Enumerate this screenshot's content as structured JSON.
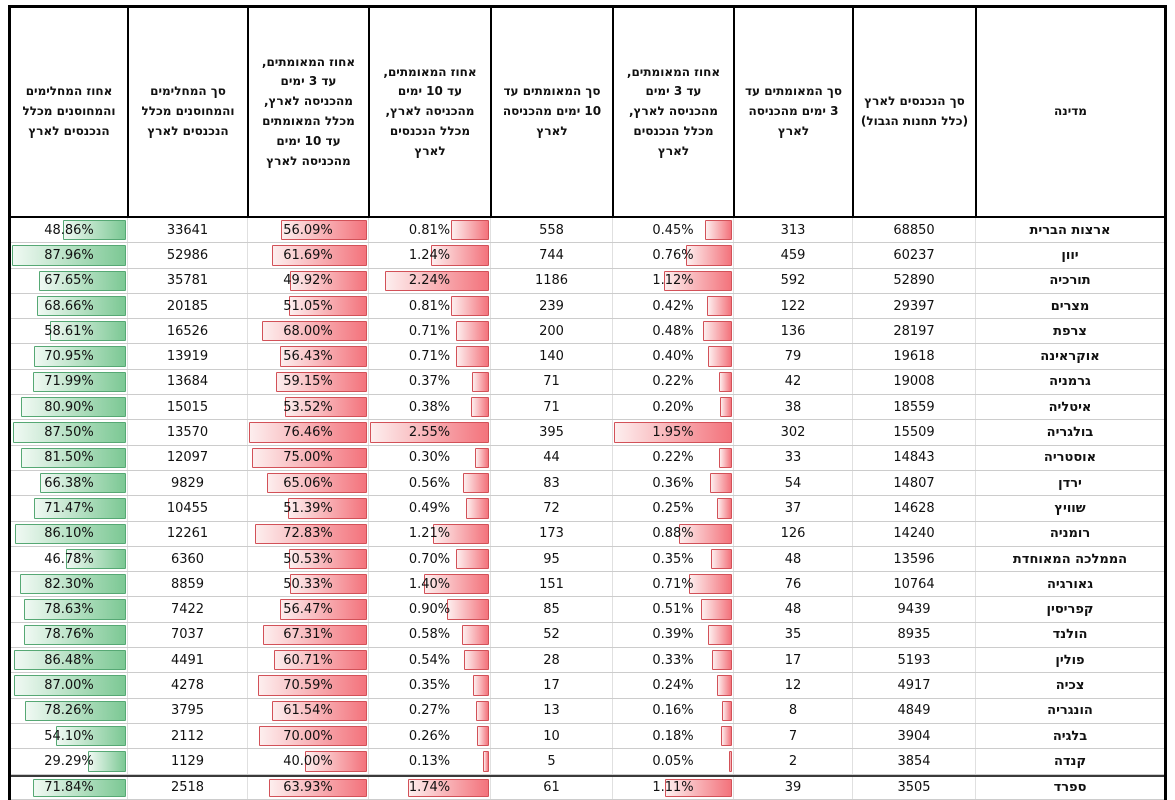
{
  "chart_data": {
    "type": "table",
    "direction": "rtl",
    "legend_position": "none",
    "grid": true,
    "columns": [
      {
        "key": "country",
        "label": "מדינה",
        "type": "text"
      },
      {
        "key": "total_entries",
        "label": "סך הנכנסים לארץ (כלל תחנות הגבול)",
        "type": "number"
      },
      {
        "key": "confirmed_3d_count",
        "label": "סך המאומתים עד 3 ימים מהכניסה לארץ",
        "type": "number"
      },
      {
        "key": "confirmed_3d_pct",
        "label": "אחוז המאומתים, עד 3 ימים מהכניסה לארץ, מכלל הנכנסים לארץ",
        "type": "percent",
        "bar": "red"
      },
      {
        "key": "confirmed_10d_count",
        "label": "סך המאומתים עד 10 ימים מהכניסה לארץ",
        "type": "number"
      },
      {
        "key": "confirmed_10d_pct",
        "label": "אחוז המאומתים, עד 10 ימים מהכניסה לארץ, מכלל הנכנסים לארץ",
        "type": "percent",
        "bar": "red"
      },
      {
        "key": "confirmed_3d_of_10d_pct",
        "label": "אחוז המאומתים, עד 3 ימים מהכניסה לארץ, מכלל המאומתים עד 10 ימים מהכניסה לארץ",
        "type": "percent",
        "bar": "red"
      },
      {
        "key": "recovered_vaccinated_count",
        "label": "סך המחלימים והמחוסנים מכלל הנכנסים לארץ",
        "type": "number"
      },
      {
        "key": "recovered_vaccinated_pct",
        "label": "אחוז המחלימים והמחוסנים מכלל הנכנסים לארץ",
        "type": "percent",
        "bar": "green"
      }
    ],
    "rows": [
      {
        "country": "ארצות הברית",
        "total_entries": 68850,
        "confirmed_3d_count": 313,
        "confirmed_3d_pct": "0.45%",
        "confirmed_10d_count": 558,
        "confirmed_10d_pct": "0.81%",
        "confirmed_3d_of_10d_pct": "56.09%",
        "recovered_vaccinated_count": 33641,
        "recovered_vaccinated_pct": "48.86%"
      },
      {
        "country": "יוון",
        "total_entries": 60237,
        "confirmed_3d_count": 459,
        "confirmed_3d_pct": "0.76%",
        "confirmed_10d_count": 744,
        "confirmed_10d_pct": "1.24%",
        "confirmed_3d_of_10d_pct": "61.69%",
        "recovered_vaccinated_count": 52986,
        "recovered_vaccinated_pct": "87.96%"
      },
      {
        "country": "תורכיה",
        "total_entries": 52890,
        "confirmed_3d_count": 592,
        "confirmed_3d_pct": "1.12%",
        "confirmed_10d_count": 1186,
        "confirmed_10d_pct": "2.24%",
        "confirmed_3d_of_10d_pct": "49.92%",
        "recovered_vaccinated_count": 35781,
        "recovered_vaccinated_pct": "67.65%"
      },
      {
        "country": "מצרים",
        "total_entries": 29397,
        "confirmed_3d_count": 122,
        "confirmed_3d_pct": "0.42%",
        "confirmed_10d_count": 239,
        "confirmed_10d_pct": "0.81%",
        "confirmed_3d_of_10d_pct": "51.05%",
        "recovered_vaccinated_count": 20185,
        "recovered_vaccinated_pct": "68.66%"
      },
      {
        "country": "צרפת",
        "total_entries": 28197,
        "confirmed_3d_count": 136,
        "confirmed_3d_pct": "0.48%",
        "confirmed_10d_count": 200,
        "confirmed_10d_pct": "0.71%",
        "confirmed_3d_of_10d_pct": "68.00%",
        "recovered_vaccinated_count": 16526,
        "recovered_vaccinated_pct": "58.61%"
      },
      {
        "country": "אוקראינה",
        "total_entries": 19618,
        "confirmed_3d_count": 79,
        "confirmed_3d_pct": "0.40%",
        "confirmed_10d_count": 140,
        "confirmed_10d_pct": "0.71%",
        "confirmed_3d_of_10d_pct": "56.43%",
        "recovered_vaccinated_count": 13919,
        "recovered_vaccinated_pct": "70.95%"
      },
      {
        "country": "גרמניה",
        "total_entries": 19008,
        "confirmed_3d_count": 42,
        "confirmed_3d_pct": "0.22%",
        "confirmed_10d_count": 71,
        "confirmed_10d_pct": "0.37%",
        "confirmed_3d_of_10d_pct": "59.15%",
        "recovered_vaccinated_count": 13684,
        "recovered_vaccinated_pct": "71.99%"
      },
      {
        "country": "איטליה",
        "total_entries": 18559,
        "confirmed_3d_count": 38,
        "confirmed_3d_pct": "0.20%",
        "confirmed_10d_count": 71,
        "confirmed_10d_pct": "0.38%",
        "confirmed_3d_of_10d_pct": "53.52%",
        "recovered_vaccinated_count": 15015,
        "recovered_vaccinated_pct": "80.90%"
      },
      {
        "country": "בולגריה",
        "total_entries": 15509,
        "confirmed_3d_count": 302,
        "confirmed_3d_pct": "1.95%",
        "confirmed_10d_count": 395,
        "confirmed_10d_pct": "2.55%",
        "confirmed_3d_of_10d_pct": "76.46%",
        "recovered_vaccinated_count": 13570,
        "recovered_vaccinated_pct": "87.50%"
      },
      {
        "country": "אוסטריה",
        "total_entries": 14843,
        "confirmed_3d_count": 33,
        "confirmed_3d_pct": "0.22%",
        "confirmed_10d_count": 44,
        "confirmed_10d_pct": "0.30%",
        "confirmed_3d_of_10d_pct": "75.00%",
        "recovered_vaccinated_count": 12097,
        "recovered_vaccinated_pct": "81.50%"
      },
      {
        "country": "ירדן",
        "total_entries": 14807,
        "confirmed_3d_count": 54,
        "confirmed_3d_pct": "0.36%",
        "confirmed_10d_count": 83,
        "confirmed_10d_pct": "0.56%",
        "confirmed_3d_of_10d_pct": "65.06%",
        "recovered_vaccinated_count": 9829,
        "recovered_vaccinated_pct": "66.38%"
      },
      {
        "country": "שוויץ",
        "total_entries": 14628,
        "confirmed_3d_count": 37,
        "confirmed_3d_pct": "0.25%",
        "confirmed_10d_count": 72,
        "confirmed_10d_pct": "0.49%",
        "confirmed_3d_of_10d_pct": "51.39%",
        "recovered_vaccinated_count": 10455,
        "recovered_vaccinated_pct": "71.47%"
      },
      {
        "country": "רומניה",
        "total_entries": 14240,
        "confirmed_3d_count": 126,
        "confirmed_3d_pct": "0.88%",
        "confirmed_10d_count": 173,
        "confirmed_10d_pct": "1.21%",
        "confirmed_3d_of_10d_pct": "72.83%",
        "recovered_vaccinated_count": 12261,
        "recovered_vaccinated_pct": "86.10%"
      },
      {
        "country": "הממלכה המאוחדת",
        "total_entries": 13596,
        "confirmed_3d_count": 48,
        "confirmed_3d_pct": "0.35%",
        "confirmed_10d_count": 95,
        "confirmed_10d_pct": "0.70%",
        "confirmed_3d_of_10d_pct": "50.53%",
        "recovered_vaccinated_count": 6360,
        "recovered_vaccinated_pct": "46.78%"
      },
      {
        "country": "גאורגיה",
        "total_entries": 10764,
        "confirmed_3d_count": 76,
        "confirmed_3d_pct": "0.71%",
        "confirmed_10d_count": 151,
        "confirmed_10d_pct": "1.40%",
        "confirmed_3d_of_10d_pct": "50.33%",
        "recovered_vaccinated_count": 8859,
        "recovered_vaccinated_pct": "82.30%"
      },
      {
        "country": "קפריסין",
        "total_entries": 9439,
        "confirmed_3d_count": 48,
        "confirmed_3d_pct": "0.51%",
        "confirmed_10d_count": 85,
        "confirmed_10d_pct": "0.90%",
        "confirmed_3d_of_10d_pct": "56.47%",
        "recovered_vaccinated_count": 7422,
        "recovered_vaccinated_pct": "78.63%"
      },
      {
        "country": "הולנד",
        "total_entries": 8935,
        "confirmed_3d_count": 35,
        "confirmed_3d_pct": "0.39%",
        "confirmed_10d_count": 52,
        "confirmed_10d_pct": "0.58%",
        "confirmed_3d_of_10d_pct": "67.31%",
        "recovered_vaccinated_count": 7037,
        "recovered_vaccinated_pct": "78.76%"
      },
      {
        "country": "פולין",
        "total_entries": 5193,
        "confirmed_3d_count": 17,
        "confirmed_3d_pct": "0.33%",
        "confirmed_10d_count": 28,
        "confirmed_10d_pct": "0.54%",
        "confirmed_3d_of_10d_pct": "60.71%",
        "recovered_vaccinated_count": 4491,
        "recovered_vaccinated_pct": "86.48%"
      },
      {
        "country": "צכיה",
        "total_entries": 4917,
        "confirmed_3d_count": 12,
        "confirmed_3d_pct": "0.24%",
        "confirmed_10d_count": 17,
        "confirmed_10d_pct": "0.35%",
        "confirmed_3d_of_10d_pct": "70.59%",
        "recovered_vaccinated_count": 4278,
        "recovered_vaccinated_pct": "87.00%"
      },
      {
        "country": "הונגריה",
        "total_entries": 4849,
        "confirmed_3d_count": 8,
        "confirmed_3d_pct": "0.16%",
        "confirmed_10d_count": 13,
        "confirmed_10d_pct": "0.27%",
        "confirmed_3d_of_10d_pct": "61.54%",
        "recovered_vaccinated_count": 3795,
        "recovered_vaccinated_pct": "78.26%"
      },
      {
        "country": "בלגיה",
        "total_entries": 3904,
        "confirmed_3d_count": 7,
        "confirmed_3d_pct": "0.18%",
        "confirmed_10d_count": 10,
        "confirmed_10d_pct": "0.26%",
        "confirmed_3d_of_10d_pct": "70.00%",
        "recovered_vaccinated_count": 2112,
        "recovered_vaccinated_pct": "54.10%"
      },
      {
        "country": "קנדה",
        "total_entries": 3854,
        "confirmed_3d_count": 2,
        "confirmed_3d_pct": "0.05%",
        "confirmed_10d_count": 5,
        "confirmed_10d_pct": "0.13%",
        "confirmed_3d_of_10d_pct": "40.00%",
        "recovered_vaccinated_count": 1129,
        "recovered_vaccinated_pct": "29.29%"
      },
      {
        "country": "ספרד",
        "total_entries": 3505,
        "confirmed_3d_count": 39,
        "confirmed_3d_pct": "1.11%",
        "confirmed_10d_count": 61,
        "confirmed_10d_pct": "1.74%",
        "confirmed_3d_of_10d_pct": "63.93%",
        "recovered_vaccinated_count": 2518,
        "recovered_vaccinated_pct": "71.84%",
        "separator_above": true
      }
    ]
  },
  "colors": {
    "green_bar_fill": "#7cc894",
    "green_bar_fade": "#f0f9f3",
    "green_bar_border": "#56a874",
    "red_bar_fill": "#f3737c",
    "red_bar_fade": "#fdeeee",
    "red_bar_border": "#d25158",
    "header_border": "#000000",
    "row_separator": "#cccccc",
    "page_break_line": "#3a3a3a"
  }
}
